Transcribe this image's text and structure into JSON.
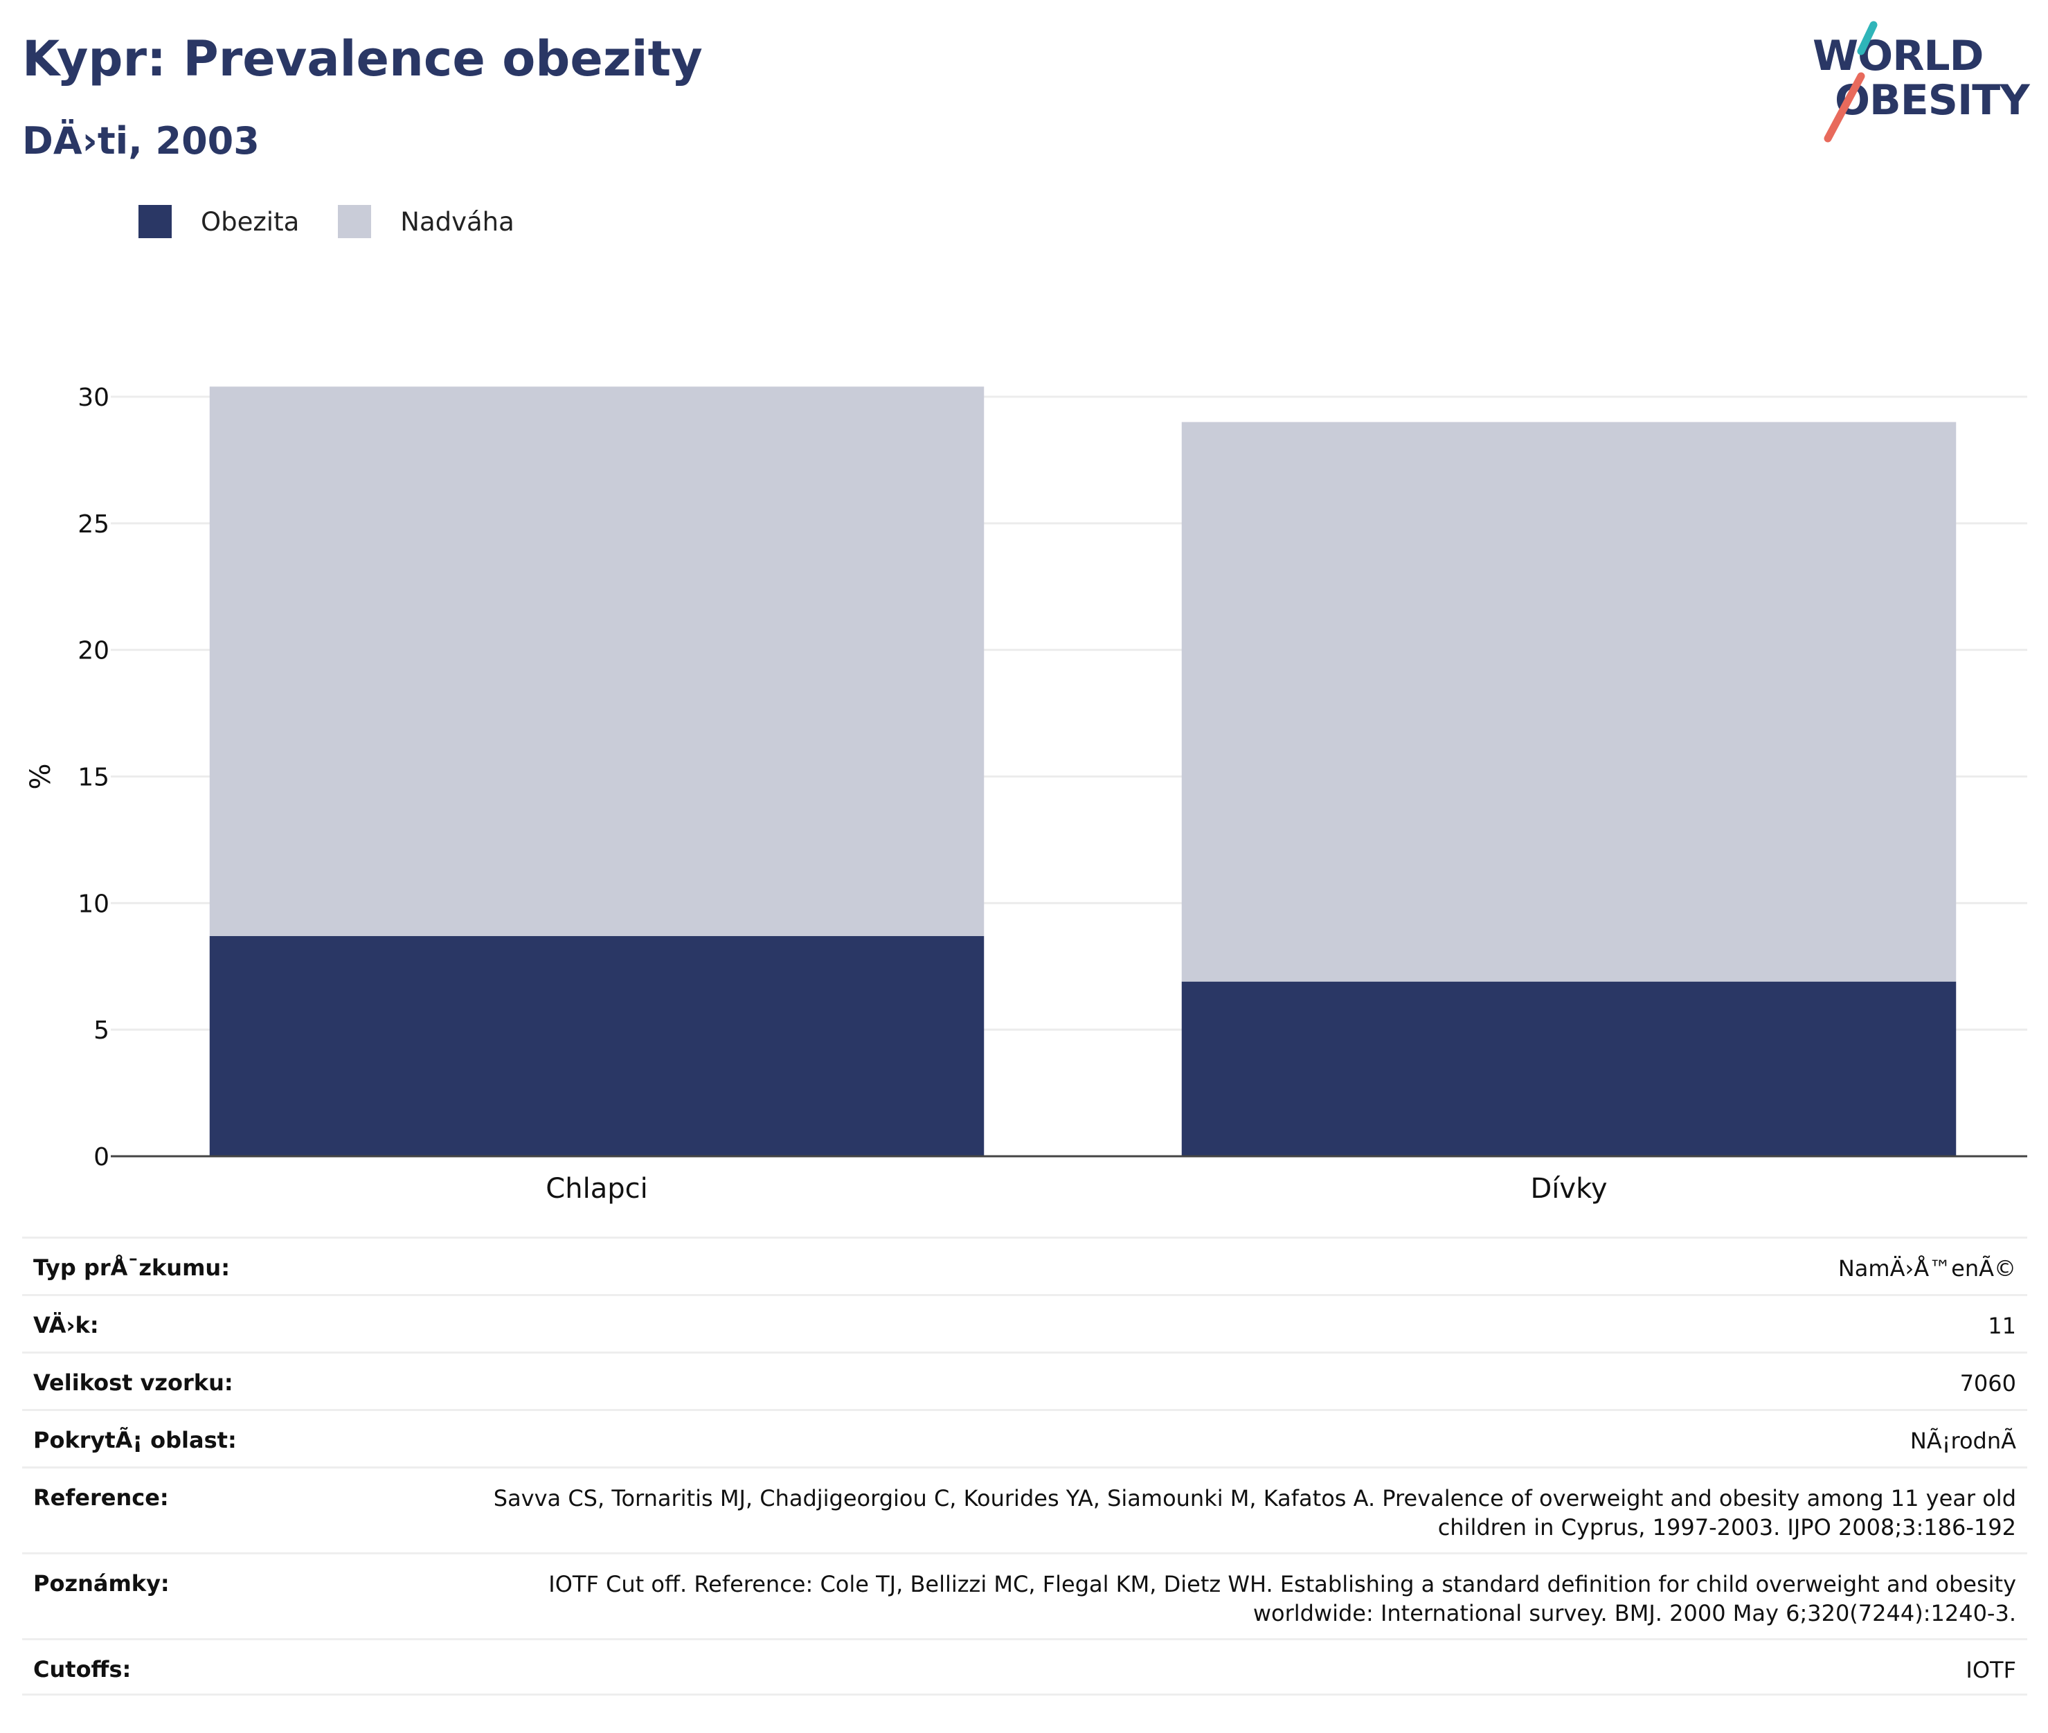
{
  "header": {
    "title": "Kypr: Prevalence obezity",
    "subtitle": "DÄ›ti, 2003"
  },
  "logo": {
    "line1": "WORLD",
    "line2": "OBESITY"
  },
  "colors": {
    "obesity": "#2a3765",
    "overweight": "#c9ccd8",
    "logo_teal": "#2fb5b9",
    "logo_coral": "#e86a5c",
    "gridline": "#ececec",
    "axis": "#444444"
  },
  "legend": [
    {
      "label": "Obezita",
      "color": "#2a3765"
    },
    {
      "label": "Nadváha",
      "color": "#c9ccd8"
    }
  ],
  "chart_data": {
    "type": "bar",
    "stacked": true,
    "categories": [
      "Chlapci",
      "Dívky"
    ],
    "series": [
      {
        "name": "Obezita",
        "values": [
          8.7,
          6.9
        ]
      },
      {
        "name": "Nadváha",
        "values": [
          21.7,
          22.1
        ]
      }
    ],
    "totals": [
      30.4,
      29.0
    ],
    "ylabel": "%",
    "ylim": [
      0,
      30
    ],
    "yticks": [
      0,
      5,
      10,
      15,
      20,
      25,
      30
    ],
    "grid": true,
    "legend_position": "top-left"
  },
  "meta": [
    {
      "key": "Typ prÅ¯zkumu:",
      "value": "NamÄ›Å™enÃ©"
    },
    {
      "key": "VÄ›k:",
      "value": "11"
    },
    {
      "key": "Velikost vzorku:",
      "value": "7060"
    },
    {
      "key": "PokrytÃ¡ oblast:",
      "value": "NÃ¡rodnÃ­"
    },
    {
      "key": "Reference:",
      "value": "Savva CS, Tornaritis MJ, Chadjigeorgiou C, Kourides YA, Siamounki M, Kafatos A. Prevalence of overweight and obesity among 11 year old children in Cyprus, 1997-2003. IJPO 2008;3:186-192"
    },
    {
      "key": "Poznámky:",
      "value": "IOTF Cut off. Reference: Cole TJ, Bellizzi MC, Flegal KM, Dietz WH. Establishing a standard definition for child overweight and obesity worldwide: International survey. BMJ. 2000 May 6;320(7244):1240-3."
    },
    {
      "key": "Cutoffs:",
      "value": "IOTF"
    }
  ]
}
